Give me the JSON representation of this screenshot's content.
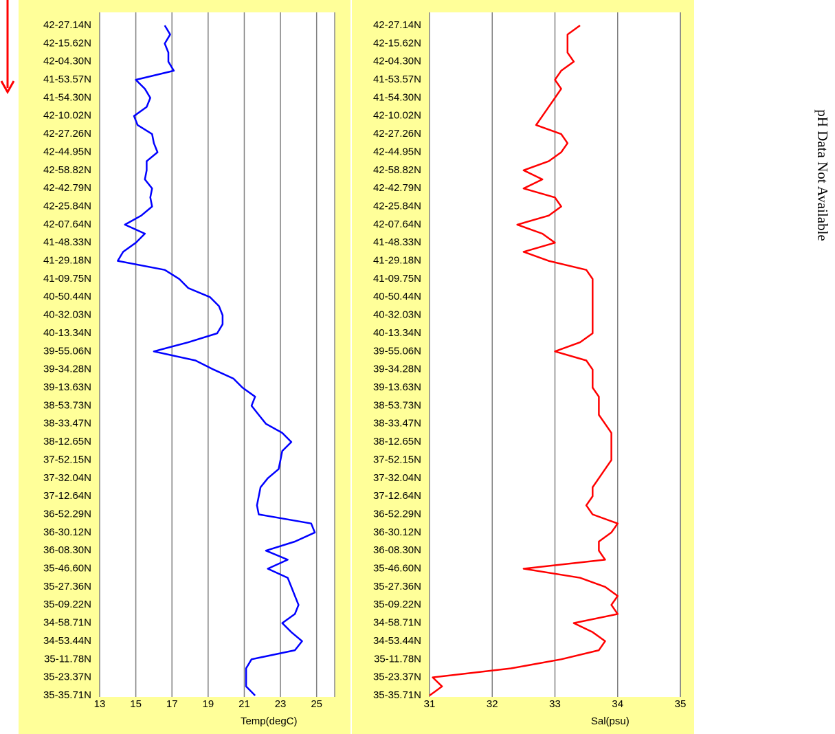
{
  "note": "pH Data Not Available",
  "chart_data": [
    {
      "type": "line",
      "orientation": "horizontal",
      "x_label": "Temp(degC)",
      "color": "#0000ff",
      "categories": [
        "42-27.14N",
        null,
        "42-15.62N",
        null,
        "42-04.30N",
        null,
        "41-53.57N",
        null,
        "41-54.30N",
        null,
        "42-10.02N",
        null,
        "42-27.26N",
        null,
        "42-44.95N",
        null,
        "42-58.82N",
        null,
        "42-42.79N",
        null,
        "42-25.84N",
        null,
        "42-07.64N",
        null,
        "41-48.33N",
        null,
        "41-29.18N",
        null,
        "41-09.75N",
        null,
        "40-50.44N",
        null,
        "40-32.03N",
        null,
        "40-13.34N",
        null,
        "39-55.06N",
        null,
        "39-34.28N",
        null,
        "39-13.63N",
        null,
        "38-53.73N",
        null,
        "38-33.47N",
        null,
        "38-12.65N",
        null,
        "37-52.15N",
        null,
        "37-32.04N",
        null,
        "37-12.64N",
        null,
        "36-52.29N",
        null,
        "36-30.12N",
        null,
        "36-08.30N",
        null,
        "35-46.60N",
        null,
        "35-27.36N",
        null,
        "35-09.22N",
        null,
        "34-58.71N",
        null,
        "34-53.44N",
        null,
        "35-11.78N",
        null,
        "35-23.37N",
        null,
        "35-35.71N"
      ],
      "values": [
        16.6,
        16.9,
        16.6,
        16.8,
        16.8,
        17.1,
        15.0,
        15.5,
        15.8,
        15.6,
        14.9,
        15.1,
        15.9,
        16.0,
        16.2,
        15.6,
        15.6,
        15.5,
        15.9,
        15.8,
        15.9,
        15.3,
        14.4,
        15.5,
        15.0,
        14.3,
        14.0,
        16.6,
        17.4,
        17.9,
        19.1,
        19.6,
        19.8,
        19.8,
        19.5,
        17.9,
        16.0,
        18.3,
        19.3,
        20.4,
        20.9,
        21.6,
        21.4,
        21.8,
        22.2,
        23.1,
        23.6,
        23.1,
        23.0,
        22.9,
        22.3,
        21.9,
        21.8,
        21.7,
        21.8,
        24.7,
        24.9,
        23.8,
        22.2,
        23.4,
        22.3,
        23.4,
        23.6,
        23.8,
        24.0,
        23.8,
        23.1,
        23.6,
        24.2,
        23.8,
        21.4,
        21.1,
        21.1,
        21.1,
        21.6
      ],
      "xlim": [
        13,
        26
      ],
      "xticks": [
        13,
        15,
        17,
        19,
        21,
        23,
        25
      ],
      "grid": true
    },
    {
      "type": "line",
      "orientation": "horizontal",
      "x_label": "Sal(psu)",
      "color": "#ff0000",
      "categories": [
        "42-27.14N",
        null,
        "42-15.62N",
        null,
        "42-04.30N",
        null,
        "41-53.57N",
        null,
        "41-54.30N",
        null,
        "42-10.02N",
        null,
        "42-27.26N",
        null,
        "42-44.95N",
        null,
        "42-58.82N",
        null,
        "42-42.79N",
        null,
        "42-25.84N",
        null,
        "42-07.64N",
        null,
        "41-48.33N",
        null,
        "41-29.18N",
        null,
        "41-09.75N",
        null,
        "40-50.44N",
        null,
        "40-32.03N",
        null,
        "40-13.34N",
        null,
        "39-55.06N",
        null,
        "39-34.28N",
        null,
        "39-13.63N",
        null,
        "38-53.73N",
        null,
        "38-33.47N",
        null,
        "38-12.65N",
        null,
        "37-52.15N",
        null,
        "37-32.04N",
        null,
        "37-12.64N",
        null,
        "36-52.29N",
        null,
        "36-30.12N",
        null,
        "36-08.30N",
        null,
        "35-46.60N",
        null,
        "35-27.36N",
        null,
        "35-09.22N",
        null,
        "34-58.71N",
        null,
        "34-53.44N",
        null,
        "35-11.78N",
        null,
        "35-23.37N",
        null,
        "35-35.71N"
      ],
      "values": [
        33.4,
        33.2,
        33.2,
        33.2,
        33.3,
        33.1,
        33.0,
        33.1,
        33.0,
        32.9,
        32.8,
        32.7,
        33.1,
        33.2,
        33.1,
        32.9,
        32.5,
        32.8,
        32.5,
        33.0,
        33.1,
        32.9,
        32.4,
        32.8,
        33.0,
        32.5,
        32.9,
        33.5,
        33.6,
        33.6,
        33.6,
        33.6,
        33.6,
        33.6,
        33.6,
        33.4,
        33.0,
        33.5,
        33.6,
        33.6,
        33.6,
        33.7,
        33.7,
        33.7,
        33.8,
        33.9,
        33.9,
        33.9,
        33.9,
        33.8,
        33.7,
        33.6,
        33.6,
        33.5,
        33.6,
        34.0,
        33.9,
        33.7,
        33.7,
        33.8,
        32.5,
        33.4,
        33.8,
        34.0,
        33.9,
        34.0,
        33.3,
        33.6,
        33.8,
        33.7,
        33.1,
        32.3,
        31.05,
        31.2,
        31.0
      ],
      "xlim": [
        31,
        35
      ],
      "xticks": [
        31,
        32,
        33,
        34,
        35
      ],
      "grid": true
    }
  ]
}
